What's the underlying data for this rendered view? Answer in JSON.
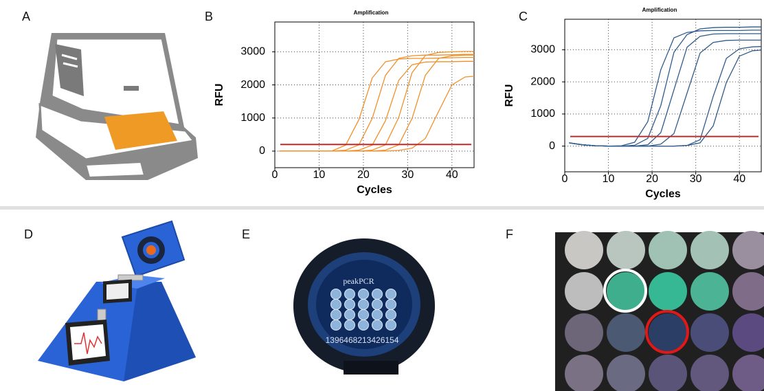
{
  "panel_labels": [
    "A",
    "B",
    "C",
    "D",
    "E",
    "F"
  ],
  "device_texts": {
    "brand": "peakPCR",
    "serial": "1396468213426154"
  },
  "chart_data": [
    {
      "type": "line",
      "title": "Amplification",
      "xlabel": "Cycles",
      "ylabel": "RFU",
      "xlim": [
        0,
        45
      ],
      "ylim": [
        -500,
        3900
      ],
      "xticks": [
        0,
        10,
        20,
        30,
        40
      ],
      "yticks": [
        0,
        1000,
        2000,
        3000
      ],
      "grid": true,
      "threshold": 200,
      "threshold_color": "#c62828",
      "x": [
        1,
        4,
        7,
        10,
        13,
        16,
        19,
        22,
        25,
        28,
        31,
        34,
        37,
        40,
        43,
        45
      ],
      "series": [
        {
          "color": "#f0902a",
          "values": [
            0,
            0,
            0,
            0,
            10,
            180,
            950,
            2210,
            2700,
            2780,
            2800,
            2800,
            2810,
            2820,
            2830,
            2830
          ]
        },
        {
          "color": "#f0902a",
          "values": [
            0,
            0,
            0,
            0,
            0,
            30,
            190,
            990,
            2290,
            2800,
            2880,
            2900,
            2900,
            2910,
            2920,
            2920
          ]
        },
        {
          "color": "#f0902a",
          "values": [
            0,
            0,
            0,
            0,
            0,
            0,
            30,
            180,
            920,
            2140,
            2610,
            2690,
            2700,
            2700,
            2710,
            2710
          ]
        },
        {
          "color": "#f0902a",
          "values": [
            0,
            0,
            0,
            0,
            0,
            0,
            0,
            30,
            190,
            1020,
            2370,
            2890,
            2980,
            3000,
            3010,
            3010
          ]
        },
        {
          "color": "#f0902a",
          "values": [
            0,
            0,
            0,
            0,
            0,
            0,
            0,
            0,
            30,
            190,
            990,
            2290,
            2800,
            2880,
            2900,
            2900
          ]
        },
        {
          "color": "#f0902a",
          "values": [
            0,
            0,
            0,
            0,
            0,
            0,
            0,
            0,
            0,
            20,
            90,
            380,
            1200,
            2000,
            2240,
            2260
          ]
        }
      ]
    },
    {
      "type": "line",
      "title": "Amplification",
      "xlabel": "Cycles",
      "ylabel": "RFU",
      "xlim": [
        0,
        45
      ],
      "ylim": [
        -800,
        3950
      ],
      "xticks": [
        0,
        10,
        20,
        30,
        40
      ],
      "yticks": [
        0,
        1000,
        2000,
        3000
      ],
      "grid": true,
      "threshold": 300,
      "threshold_color": "#b03030",
      "x": [
        1,
        4,
        7,
        10,
        13,
        16,
        19,
        22,
        25,
        28,
        31,
        34,
        37,
        40,
        43,
        45
      ],
      "series": [
        {
          "color": "#2e5b8c",
          "values": [
            100,
            40,
            10,
            0,
            10,
            120,
            760,
            2380,
            3370,
            3540,
            3590,
            3600,
            3600,
            3600,
            3610,
            3610
          ]
        },
        {
          "color": "#2e5b8c",
          "values": [
            100,
            40,
            10,
            0,
            0,
            25,
            240,
            1260,
            2920,
            3470,
            3650,
            3690,
            3700,
            3700,
            3710,
            3710
          ]
        },
        {
          "color": "#2e5b8c",
          "values": [
            100,
            40,
            10,
            0,
            0,
            0,
            40,
            420,
            1750,
            3080,
            3420,
            3490,
            3500,
            3500,
            3500,
            3500
          ]
        },
        {
          "color": "#2e5b8c",
          "values": [
            100,
            40,
            10,
            0,
            0,
            0,
            0,
            60,
            390,
            1650,
            2900,
            3230,
            3290,
            3300,
            3300,
            3300
          ]
        },
        {
          "color": "#2e5b8c",
          "values": [
            100,
            40,
            10,
            0,
            0,
            0,
            0,
            0,
            0,
            20,
            200,
            1550,
            2730,
            3030,
            3090,
            3100
          ]
        },
        {
          "color": "#2e5b8c",
          "values": [
            100,
            40,
            10,
            0,
            0,
            0,
            0,
            0,
            0,
            20,
            100,
            630,
            1980,
            2800,
            2970,
            2990
          ]
        }
      ]
    }
  ]
}
